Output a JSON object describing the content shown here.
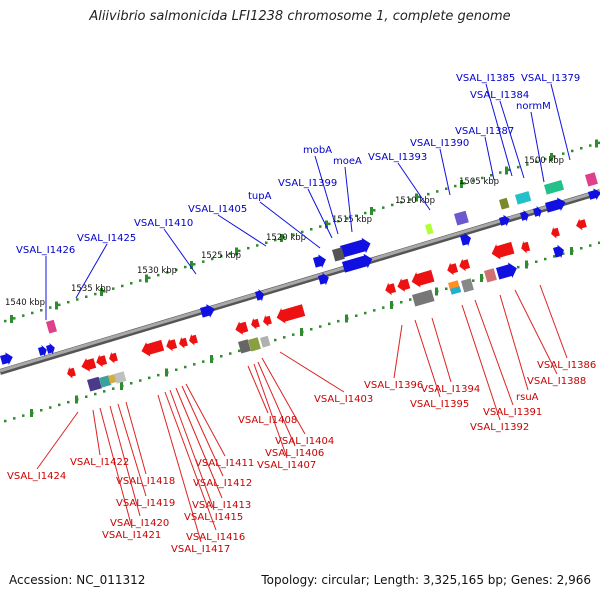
{
  "title": "Aliivibrio salmonicida LFI1238 chromosome 1, complete genome",
  "footer": {
    "accession": "Accession: NC_011312",
    "summary": "Topology: circular; Length: 3,325,165 bp; Genes: 2,966"
  },
  "colors": {
    "forward_gene": "#1010e0",
    "reverse_gene": "#ee1111",
    "forward_label": "#0000cc",
    "reverse_label": "#cc0000",
    "backbone": "#7f7f7f",
    "tick": "#2e8b2e"
  },
  "ruler_labels": [
    "1500 kbp",
    "1505 kbp",
    "1510 kbp",
    "1515 kbp",
    "1520 kbp",
    "1525 kbp",
    "1530 kbp",
    "1535 kbp",
    "1540 kbp"
  ],
  "forward_labels": [
    "VSAL_I1379",
    "VSAL_I1384",
    "VSAL_I1385",
    "normM",
    "VSAL_I1387",
    "VSAL_I1390",
    "VSAL_I1393",
    "moeA",
    "mobA",
    "VSAL_I1399",
    "tupA",
    "VSAL_I1405",
    "VSAL_I1410",
    "VSAL_I1425",
    "VSAL_I1426"
  ],
  "reverse_labels": [
    "VSAL_I1386",
    "VSAL_I1388",
    "rsuA",
    "VSAL_I1391",
    "VSAL_I1392",
    "VSAL_I1394",
    "VSAL_I1395",
    "VSAL_I1396",
    "VSAL_I1403",
    "VSAL_I1404",
    "VSAL_I1406",
    "VSAL_I1407",
    "VSAL_I1408",
    "VSAL_I1411",
    "VSAL_I1412",
    "VSAL_I1413",
    "VSAL_I1415",
    "VSAL_I1416",
    "VSAL_I1417",
    "VSAL_I1418",
    "VSAL_I1419",
    "VSAL_I1420",
    "VSAL_I1421",
    "VSAL_I1422",
    "VSAL_I1424"
  ]
}
